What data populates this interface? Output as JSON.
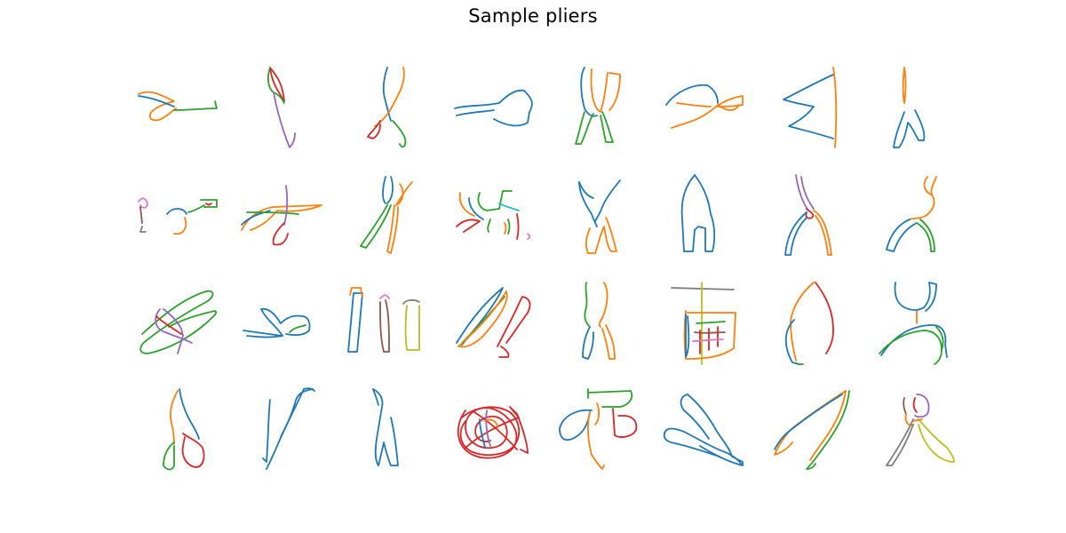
{
  "figure": {
    "title": "Sample pliers"
  },
  "palette": [
    "#1f77b4",
    "#ff7f0e",
    "#2ca02c",
    "#d62728",
    "#9467bd",
    "#8c564b",
    "#e377c2",
    "#7f7f7f",
    "#bcbd22",
    "#17becf"
  ],
  "grid": {
    "rows": 4,
    "cols": 8
  }
}
